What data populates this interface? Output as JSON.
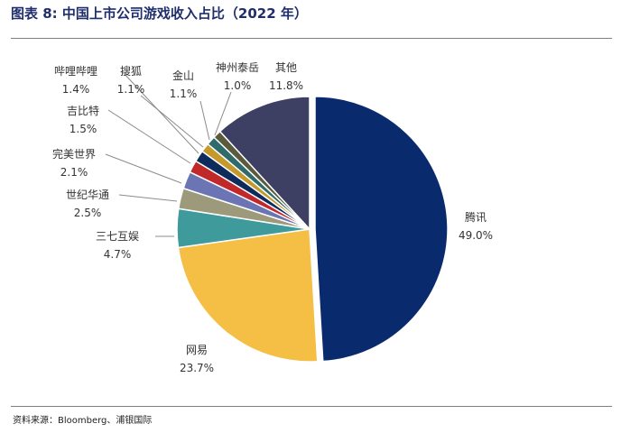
{
  "figure": {
    "title": "图表 8: 中国上市公司游戏收入占比（2022 年）",
    "source": "资料来源：Bloomberg、浦银国际"
  },
  "chart_data": {
    "type": "pie",
    "start_angle_deg": 0,
    "direction": "clockwise",
    "legend": "none",
    "slices": [
      {
        "name": "腾讯",
        "value": 49.0,
        "label": "49.0%",
        "color": "#0a2a6e"
      },
      {
        "name": "网易",
        "value": 23.7,
        "label": "23.7%",
        "color": "#f4bf44"
      },
      {
        "name": "三七互娱",
        "value": 4.7,
        "label": "4.7%",
        "color": "#3f9b9b"
      },
      {
        "name": "世纪华通",
        "value": 2.5,
        "label": "2.5%",
        "color": "#9c9a7a"
      },
      {
        "name": "完美世界",
        "value": 2.1,
        "label": "2.1%",
        "color": "#6b75b3"
      },
      {
        "name": "吉比特",
        "value": 1.5,
        "label": "1.5%",
        "color": "#c0282a"
      },
      {
        "name": "哔哩哔哩",
        "value": 1.4,
        "label": "1.4%",
        "color": "#0d2b5c"
      },
      {
        "name": "搜狐",
        "value": 1.1,
        "label": "1.1%",
        "color": "#c49a2c"
      },
      {
        "name": "金山",
        "value": 1.1,
        "label": "1.1%",
        "color": "#2e6b6b"
      },
      {
        "name": "神州泰岳",
        "value": 1.0,
        "label": "1.0%",
        "color": "#5a5a3c"
      },
      {
        "name": "其他",
        "value": 11.8,
        "label": "11.8%",
        "color": "#3d3f63"
      }
    ]
  }
}
